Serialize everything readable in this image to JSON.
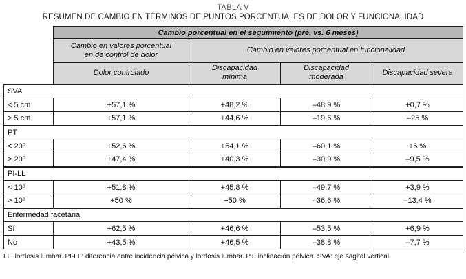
{
  "page": {
    "title": "TABLA V",
    "subtitle": "RESUMEN DE CAMBIO EN TÉRMINOS DE PUNTOS PORCENTUALES DE DOLOR Y FUNCIONALIDAD"
  },
  "chart_data": {
    "type": "table",
    "top_header": "Cambio porcentual en el seguimiento (pre. vs. 6 meses)",
    "group_header_pain": "Cambio en valores porcentual\nen de control de dolor",
    "group_header_function": "Cambio en valores porcentual en  funcionalidad",
    "column_headers": [
      "Dolor controlado",
      "Discapacidad\nmínima",
      "Discapacidad\nmoderada",
      "Discapacidad severa"
    ],
    "sections": [
      {
        "name": "SVA",
        "rows": [
          {
            "label": "< 5 cm",
            "values": [
              "+57,1 %",
              "+48,2 %",
              "–48,9 %",
              "+0,7 %"
            ]
          },
          {
            "label": "> 5 cm",
            "values": [
              "+57,1 %",
              "+44,6 %",
              "–19,6 %",
              "–25 %"
            ]
          }
        ]
      },
      {
        "name": "PT",
        "rows": [
          {
            "label": "< 20º",
            "values": [
              "+52,6 %",
              "+54,1 %",
              "–60,1 %",
              "+6 %"
            ]
          },
          {
            "label": "> 20º",
            "values": [
              "+47,4 %",
              "+40,3 %",
              "–30,9 %",
              "–9,5 %"
            ]
          }
        ]
      },
      {
        "name": "PI-LL",
        "rows": [
          {
            "label": "< 10º",
            "values": [
              "+51,8 %",
              "+45,8 %",
              "–49,7 %",
              "+3,9 %"
            ]
          },
          {
            "label": "> 10º",
            "values": [
              "+50 %",
              "+50 %",
              "–36,6 %",
              "–13,4 %"
            ]
          }
        ]
      },
      {
        "name": "Enfermedad facetaria",
        "rows": [
          {
            "label": "Sí",
            "values": [
              "+62,5 %",
              "+46,6 %",
              "–53,5 %",
              "+6,9 %"
            ]
          },
          {
            "label": "No",
            "values": [
              "+43,5 %",
              "+46,5 %",
              "–38,8 %",
              "–7,7 %"
            ]
          }
        ]
      }
    ]
  },
  "footnote": "LL: lordosis lumbar. PI-LL: diferencia entre incidencia pélvica y lordosis lumbar. PT: inclinación pélvica. SVA: eje sagital vertical.",
  "colors": {
    "band_bg": "#b7b7b7",
    "header_bg": "#d8d8d8",
    "border": "#1c1c1c"
  }
}
